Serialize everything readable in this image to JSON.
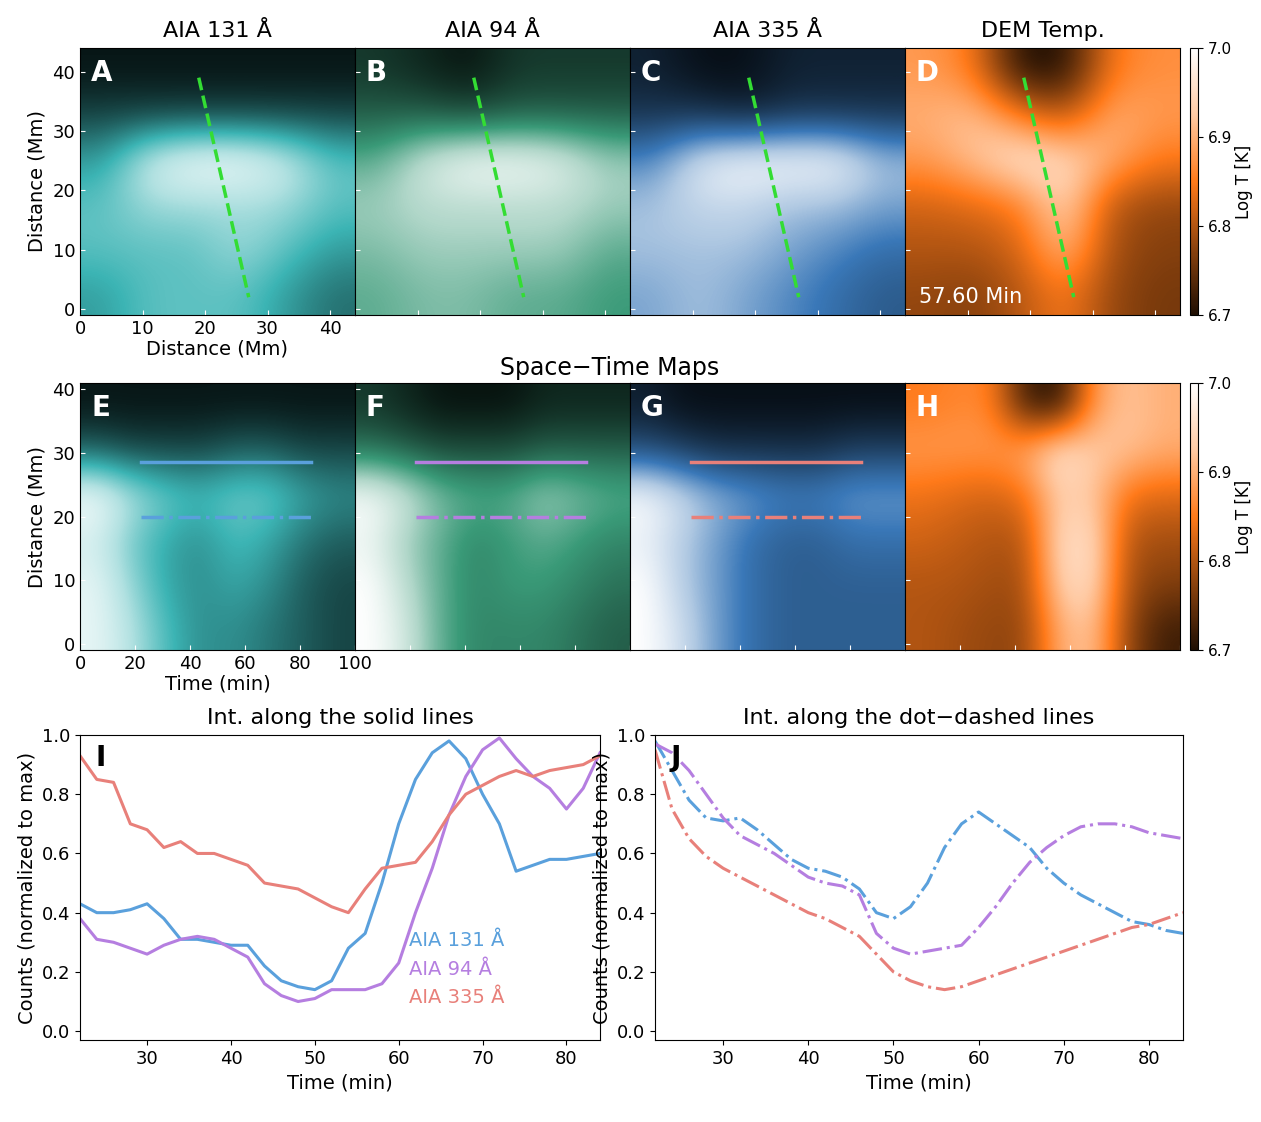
{
  "section_title": "Space−Time Maps",
  "chart_data": [
    {
      "type": "heatmap",
      "label": "A",
      "title": "AIA 131 Å",
      "color": "#3cb4b4",
      "xlabel": "Distance (Mm)",
      "ylabel": "Distance (Mm)",
      "xlim": [
        0,
        44
      ],
      "ylim": [
        -1,
        44
      ],
      "xticks": [
        0,
        10,
        20,
        30,
        40
      ],
      "yticks": [
        0,
        10,
        20,
        30,
        40
      ],
      "cells": [
        [
          0.45,
          0.5,
          0.5,
          0.5,
          0.45,
          0.4
        ],
        [
          0.5,
          0.5,
          0.5,
          0.55,
          0.5,
          0.45
        ],
        [
          0.5,
          0.55,
          0.55,
          0.55,
          0.55,
          0.5
        ],
        [
          0.45,
          0.6,
          0.65,
          0.65,
          0.6,
          0.5
        ],
        [
          0.35,
          0.35,
          0.35,
          0.35,
          0.35,
          0.35
        ],
        [
          0.3,
          0.3,
          0.3,
          0.3,
          0.3,
          0.3
        ]
      ],
      "lines": [
        {
          "x": [
            19,
            27
          ],
          "y": [
            39,
            2
          ],
          "color": "#33dd33",
          "line_style": "dashed"
        }
      ]
    },
    {
      "type": "heatmap",
      "label": "B",
      "title": "AIA 94 Å",
      "color": "#3a9a78",
      "tick_labels": false,
      "xlim": [
        0,
        44
      ],
      "ylim": [
        -1,
        44
      ],
      "xticks": [
        0,
        10,
        20,
        30,
        40
      ],
      "yticks": [
        0,
        10,
        20,
        30,
        40
      ],
      "cells": [
        [
          0.5,
          0.55,
          0.55,
          0.5,
          0.5,
          0.45
        ],
        [
          0.55,
          0.6,
          0.6,
          0.6,
          0.6,
          0.5
        ],
        [
          0.6,
          0.65,
          0.65,
          0.65,
          0.65,
          0.6
        ],
        [
          0.5,
          0.7,
          0.8,
          0.8,
          0.75,
          0.6
        ],
        [
          0.3,
          0.3,
          0.25,
          0.3,
          0.3,
          0.3
        ],
        [
          0.2,
          0.15,
          0.1,
          0.2,
          0.2,
          0.2
        ]
      ],
      "lines": [
        {
          "x": [
            19,
            27
          ],
          "y": [
            39,
            2
          ],
          "color": "#33dd33",
          "line_style": "dashed"
        }
      ]
    },
    {
      "type": "heatmap",
      "label": "C",
      "title": "AIA 335 Å",
      "color": "#3a78b8",
      "tick_labels": false,
      "xlim": [
        0,
        44
      ],
      "ylim": [
        -1,
        44
      ],
      "xticks": [
        0,
        10,
        20,
        30,
        40
      ],
      "yticks": [
        0,
        10,
        20,
        30,
        40
      ],
      "cells": [
        [
          0.55,
          0.6,
          0.55,
          0.5,
          0.45,
          0.4
        ],
        [
          0.6,
          0.6,
          0.6,
          0.55,
          0.5,
          0.45
        ],
        [
          0.6,
          0.65,
          0.65,
          0.6,
          0.6,
          0.55
        ],
        [
          0.5,
          0.7,
          0.75,
          0.75,
          0.75,
          0.6
        ],
        [
          0.3,
          0.3,
          0.25,
          0.3,
          0.3,
          0.3
        ],
        [
          0.25,
          0.2,
          0.2,
          0.25,
          0.25,
          0.25
        ]
      ],
      "lines": [
        {
          "x": [
            19,
            27
          ],
          "y": [
            39,
            2
          ],
          "color": "#33dd33",
          "line_style": "dashed"
        }
      ]
    },
    {
      "type": "heatmap",
      "label": "D",
      "title": "DEM Temp.",
      "color": "#ff7a1a",
      "tick_labels": false,
      "annotation": "57.60 Min",
      "xlim": [
        0,
        44
      ],
      "ylim": [
        -1,
        44
      ],
      "xticks": [
        0,
        10,
        20,
        30,
        40
      ],
      "yticks": [
        0,
        10,
        20,
        30,
        40
      ],
      "cells": [
        [
          6.78,
          6.77,
          6.8,
          6.85,
          6.78,
          6.76
        ],
        [
          6.8,
          6.8,
          6.82,
          6.92,
          6.79,
          6.77
        ],
        [
          6.82,
          6.83,
          6.85,
          6.95,
          6.8,
          6.78
        ],
        [
          6.88,
          6.92,
          6.97,
          6.95,
          6.9,
          6.85
        ],
        [
          6.9,
          6.92,
          6.85,
          6.8,
          6.9,
          6.88
        ],
        [
          6.88,
          6.85,
          6.7,
          6.7,
          6.85,
          6.87
        ]
      ],
      "colorbar": {
        "range": [
          6.7,
          7.0
        ],
        "ticks": [
          6.7,
          6.8,
          6.9,
          7.0
        ],
        "label": "Log T [K]"
      },
      "lines": [
        {
          "x": [
            19,
            27
          ],
          "y": [
            39,
            2
          ],
          "color": "#33dd33",
          "line_style": "dashed"
        }
      ]
    },
    {
      "type": "heatmap",
      "label": "E",
      "color": "#3cb4b4",
      "xlabel": "Time (min)",
      "ylabel": "Distance (Mm)",
      "xlim": [
        0,
        100
      ],
      "ylim": [
        -1,
        41
      ],
      "xticks": [
        0,
        20,
        40,
        60,
        80,
        100
      ],
      "yticks": [
        0,
        10,
        20,
        30,
        40
      ],
      "cells": [
        [
          0.8,
          0.7,
          0.55,
          0.45,
          0.45,
          0.4,
          0.35,
          0.3
        ],
        [
          0.8,
          0.65,
          0.5,
          0.45,
          0.5,
          0.45,
          0.35,
          0.3
        ],
        [
          0.75,
          0.6,
          0.5,
          0.45,
          0.55,
          0.5,
          0.4,
          0.35
        ],
        [
          0.85,
          0.7,
          0.6,
          0.55,
          0.6,
          0.6,
          0.5,
          0.45
        ],
        [
          0.35,
          0.3,
          0.3,
          0.3,
          0.35,
          0.35,
          0.3,
          0.3
        ],
        [
          0.2,
          0.2,
          0.2,
          0.2,
          0.2,
          0.2,
          0.2,
          0.2
        ]
      ],
      "lines": [
        {
          "x": [
            22,
            84
          ],
          "y": [
            28.5,
            28.5
          ],
          "color": "#5aa0dc",
          "line_style": "solid"
        },
        {
          "x": [
            22,
            84
          ],
          "y": [
            20,
            20
          ],
          "color": "#5aa0dc",
          "line_style": "dashdot"
        }
      ]
    },
    {
      "type": "heatmap",
      "label": "F",
      "color": "#3a9a78",
      "tick_labels": false,
      "xlim": [
        0,
        100
      ],
      "ylim": [
        -1,
        41
      ],
      "xticks": [
        0,
        20,
        40,
        60,
        80,
        100
      ],
      "yticks": [
        0,
        10,
        20,
        30,
        40
      ],
      "cells": [
        [
          0.85,
          0.75,
          0.55,
          0.45,
          0.45,
          0.45,
          0.4,
          0.35
        ],
        [
          0.85,
          0.7,
          0.55,
          0.45,
          0.5,
          0.5,
          0.45,
          0.4
        ],
        [
          0.8,
          0.65,
          0.55,
          0.45,
          0.5,
          0.55,
          0.5,
          0.45
        ],
        [
          0.85,
          0.75,
          0.6,
          0.55,
          0.55,
          0.65,
          0.6,
          0.55
        ],
        [
          0.4,
          0.35,
          0.3,
          0.3,
          0.3,
          0.35,
          0.35,
          0.35
        ],
        [
          0.25,
          0.2,
          0.15,
          0.15,
          0.15,
          0.2,
          0.2,
          0.2
        ]
      ],
      "lines": [
        {
          "x": [
            22,
            84
          ],
          "y": [
            28.5,
            28.5
          ],
          "color": "#b57ee0",
          "line_style": "solid"
        },
        {
          "x": [
            22,
            84
          ],
          "y": [
            20,
            20
          ],
          "color": "#b57ee0",
          "line_style": "dashdot"
        }
      ]
    },
    {
      "type": "heatmap",
      "label": "G",
      "color": "#3a78b8",
      "tick_labels": false,
      "xlim": [
        0,
        100
      ],
      "ylim": [
        -1,
        41
      ],
      "xticks": [
        0,
        20,
        40,
        60,
        80,
        100
      ],
      "yticks": [
        0,
        10,
        20,
        30,
        40
      ],
      "cells": [
        [
          0.85,
          0.75,
          0.6,
          0.5,
          0.45,
          0.45,
          0.45,
          0.45
        ],
        [
          0.85,
          0.7,
          0.6,
          0.5,
          0.45,
          0.45,
          0.45,
          0.45
        ],
        [
          0.8,
          0.7,
          0.6,
          0.5,
          0.45,
          0.45,
          0.5,
          0.5
        ],
        [
          0.85,
          0.75,
          0.65,
          0.6,
          0.55,
          0.55,
          0.6,
          0.6
        ],
        [
          0.4,
          0.35,
          0.3,
          0.3,
          0.3,
          0.3,
          0.35,
          0.35
        ],
        [
          0.25,
          0.2,
          0.2,
          0.2,
          0.2,
          0.2,
          0.2,
          0.2
        ]
      ],
      "lines": [
        {
          "x": [
            22,
            84
          ],
          "y": [
            28.5,
            28.5
          ],
          "color": "#e8807a",
          "line_style": "solid"
        },
        {
          "x": [
            22,
            84
          ],
          "y": [
            20,
            20
          ],
          "color": "#e8807a",
          "line_style": "dashdot"
        }
      ]
    },
    {
      "type": "heatmap",
      "label": "H",
      "color": "#ff7a1a",
      "tick_labels": false,
      "xlim": [
        0,
        100
      ],
      "ylim": [
        -1,
        41
      ],
      "xticks": [
        0,
        20,
        40,
        60,
        80,
        100
      ],
      "yticks": [
        0,
        10,
        20,
        30,
        40
      ],
      "cells": [
        [
          6.8,
          6.79,
          6.78,
          6.78,
          6.9,
          6.92,
          6.78,
          6.72
        ],
        [
          6.8,
          6.8,
          6.79,
          6.79,
          6.94,
          6.95,
          6.79,
          6.77
        ],
        [
          6.82,
          6.81,
          6.8,
          6.8,
          6.95,
          6.95,
          6.8,
          6.79
        ],
        [
          6.84,
          6.83,
          6.82,
          6.84,
          6.93,
          6.92,
          6.84,
          6.83
        ],
        [
          6.88,
          6.88,
          6.88,
          6.9,
          6.97,
          6.93,
          6.92,
          6.9
        ],
        [
          6.85,
          6.86,
          6.86,
          6.72,
          6.7,
          6.88,
          6.92,
          6.9
        ]
      ],
      "colorbar": {
        "range": [
          6.7,
          7.0
        ],
        "ticks": [
          6.7,
          6.8,
          6.9,
          7.0
        ],
        "label": "Log T [K]"
      }
    },
    {
      "type": "line",
      "label": "I",
      "title": "Int. along the solid lines",
      "xlabel": "Time (min)",
      "ylabel": "Counts (normalized to max)",
      "xlim": [
        22,
        84
      ],
      "ylim": [
        -0.03,
        1.0
      ],
      "xticks": [
        30,
        40,
        50,
        60,
        70,
        80
      ],
      "yticks": [
        0.0,
        0.2,
        0.4,
        0.6,
        0.8,
        1.0
      ],
      "legend": "lower right",
      "x": [
        22,
        24,
        26,
        28,
        30,
        32,
        34,
        36,
        38,
        40,
        42,
        44,
        46,
        48,
        50,
        52,
        54,
        56,
        58,
        60,
        62,
        64,
        66,
        68,
        70,
        72,
        74,
        76,
        78,
        80,
        82,
        84
      ],
      "series": [
        {
          "name": "AIA 131 Å",
          "color": "#5aa0dc",
          "line_style": "solid",
          "values": [
            0.43,
            0.4,
            0.4,
            0.41,
            0.43,
            0.38,
            0.31,
            0.31,
            0.3,
            0.29,
            0.29,
            0.22,
            0.17,
            0.15,
            0.14,
            0.17,
            0.28,
            0.33,
            0.5,
            0.7,
            0.85,
            0.94,
            0.98,
            0.92,
            0.8,
            0.7,
            0.54,
            0.56,
            0.58,
            0.58,
            0.59,
            0.6
          ]
        },
        {
          "name": "AIA 94 Å",
          "color": "#b57ee0",
          "line_style": "solid",
          "values": [
            0.38,
            0.31,
            0.3,
            0.28,
            0.26,
            0.29,
            0.31,
            0.32,
            0.31,
            0.28,
            0.25,
            0.16,
            0.12,
            0.1,
            0.11,
            0.14,
            0.14,
            0.14,
            0.16,
            0.23,
            0.4,
            0.55,
            0.73,
            0.86,
            0.95,
            0.99,
            0.92,
            0.86,
            0.82,
            0.75,
            0.82,
            0.94
          ]
        },
        {
          "name": "AIA 335 Å",
          "color": "#e8807a",
          "line_style": "solid",
          "values": [
            0.93,
            0.85,
            0.84,
            0.7,
            0.68,
            0.62,
            0.64,
            0.6,
            0.6,
            0.58,
            0.56,
            0.5,
            0.49,
            0.48,
            0.45,
            0.42,
            0.4,
            0.48,
            0.55,
            0.56,
            0.57,
            0.64,
            0.73,
            0.8,
            0.83,
            0.86,
            0.88,
            0.86,
            0.88,
            0.89,
            0.9,
            0.93
          ]
        }
      ]
    },
    {
      "type": "line",
      "label": "J",
      "title": "Int. along the dot−dashed lines",
      "xlabel": "Time (min)",
      "ylabel": "Counts (normalized to max)",
      "xlim": [
        22,
        84
      ],
      "ylim": [
        -0.03,
        1.0
      ],
      "xticks": [
        30,
        40,
        50,
        60,
        70,
        80
      ],
      "yticks": [
        0.0,
        0.2,
        0.4,
        0.6,
        0.8,
        1.0
      ],
      "x": [
        22,
        24,
        26,
        28,
        30,
        32,
        34,
        36,
        38,
        40,
        42,
        44,
        46,
        48,
        50,
        52,
        54,
        56,
        58,
        60,
        62,
        64,
        66,
        68,
        70,
        72,
        74,
        76,
        78,
        80,
        82,
        84
      ],
      "series": [
        {
          "color": "#5aa0dc",
          "line_style": "dashdot",
          "values": [
            0.98,
            0.88,
            0.78,
            0.72,
            0.71,
            0.72,
            0.68,
            0.63,
            0.58,
            0.55,
            0.54,
            0.52,
            0.48,
            0.4,
            0.38,
            0.42,
            0.5,
            0.62,
            0.7,
            0.74,
            0.7,
            0.66,
            0.62,
            0.55,
            0.5,
            0.46,
            0.43,
            0.4,
            0.37,
            0.36,
            0.34,
            0.33
          ]
        },
        {
          "color": "#b57ee0",
          "line_style": "dashdot",
          "values": [
            0.97,
            0.94,
            0.88,
            0.8,
            0.72,
            0.66,
            0.63,
            0.6,
            0.56,
            0.52,
            0.5,
            0.49,
            0.46,
            0.33,
            0.28,
            0.26,
            0.27,
            0.28,
            0.29,
            0.35,
            0.42,
            0.5,
            0.57,
            0.62,
            0.66,
            0.69,
            0.7,
            0.7,
            0.69,
            0.67,
            0.66,
            0.65
          ]
        },
        {
          "color": "#e8807a",
          "line_style": "dashdot",
          "values": [
            0.95,
            0.75,
            0.65,
            0.59,
            0.55,
            0.52,
            0.49,
            0.46,
            0.43,
            0.4,
            0.38,
            0.35,
            0.32,
            0.26,
            0.2,
            0.17,
            0.15,
            0.14,
            0.15,
            0.17,
            0.19,
            0.21,
            0.23,
            0.25,
            0.27,
            0.29,
            0.31,
            0.33,
            0.35,
            0.36,
            0.38,
            0.4
          ]
        }
      ]
    }
  ]
}
